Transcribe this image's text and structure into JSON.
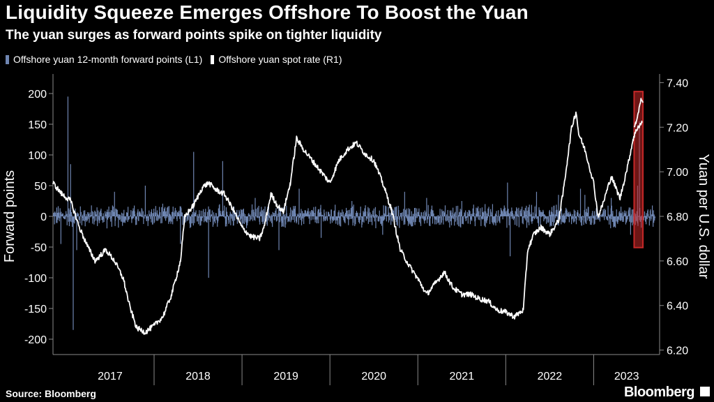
{
  "title": "Liquidity Squeeze Emerges Offshore To Boost the Yuan",
  "subtitle": "The yuan surges as forward points spike on tighter liquidity",
  "source": "Source: Bloomberg",
  "brand": "Bloomberg",
  "colors": {
    "background": "#000000",
    "forward_points": "#6f86b2",
    "spot_rate": "#ffffff",
    "highlight": "#c62828",
    "axis": "#8a8a8a"
  },
  "chart_data": {
    "type": "line",
    "title": "Liquidity Squeeze Emerges Offshore To Boost the Yuan",
    "subtitle": "The yuan surges as forward points spike on tighter liquidity",
    "xlabel": "",
    "ylabel_left": "Forward points",
    "ylabel_right": "Yuan per U.S. dollar",
    "x_range": [
      2016.85,
      2023.75
    ],
    "x_categories": [
      "2017",
      "2018",
      "2019",
      "2020",
      "2021",
      "2022",
      "2023"
    ],
    "y_left": {
      "range": [
        -225,
        225
      ],
      "ticks": [
        200,
        150,
        100,
        50,
        0,
        -50,
        -100,
        -150,
        -200
      ],
      "tick_labels": [
        "200",
        "150",
        "100",
        "50",
        "0",
        "-50",
        "-100",
        "-150",
        "-200"
      ]
    },
    "y_right": {
      "range": [
        6.18,
        7.42
      ],
      "ticks": [
        7.4,
        7.2,
        7.0,
        6.8,
        6.6,
        6.4,
        6.2
      ],
      "tick_labels": [
        "7.40",
        "7.20",
        "7.00",
        "6.80",
        "6.60",
        "6.40",
        "6.20"
      ]
    },
    "highlight": {
      "x_start": 2023.46,
      "x_end": 2023.56,
      "y_low": 6.66,
      "y_high": 7.36
    },
    "series": [
      {
        "name": "Offshore yuan 12-month forward points (L1)",
        "axis": "left",
        "style": "bars",
        "base_noise": 18,
        "x": [
          2016.94,
          2017.02,
          2017.05,
          2017.08,
          2017.12,
          2017.55,
          2017.9,
          2018.3,
          2018.45,
          2018.62,
          2018.78,
          2019.15,
          2019.42,
          2019.65,
          2019.9,
          2020.25,
          2020.6,
          2020.85,
          2021.1,
          2021.5,
          2021.85,
          2022.02,
          2022.05,
          2022.35,
          2022.6,
          2022.85,
          2022.9,
          2023.2,
          2023.42,
          2023.5,
          2023.52
        ],
        "values": [
          -45,
          195,
          85,
          -185,
          -55,
          40,
          50,
          -45,
          105,
          -100,
          90,
          30,
          -55,
          45,
          -35,
          25,
          -30,
          40,
          30,
          25,
          20,
          55,
          -65,
          40,
          35,
          45,
          35,
          30,
          -30,
          50,
          155
        ]
      },
      {
        "name": "Offshore yuan spot rate (R1)",
        "axis": "right",
        "style": "line",
        "noise": 0.012,
        "x": [
          2016.85,
          2016.95,
          2017.05,
          2017.15,
          2017.25,
          2017.33,
          2017.45,
          2017.55,
          2017.65,
          2017.72,
          2017.8,
          2017.9,
          2018.0,
          2018.1,
          2018.2,
          2018.3,
          2018.35,
          2018.45,
          2018.55,
          2018.62,
          2018.7,
          2018.8,
          2018.9,
          2019.0,
          2019.1,
          2019.2,
          2019.25,
          2019.33,
          2019.4,
          2019.47,
          2019.55,
          2019.62,
          2019.7,
          2019.8,
          2019.9,
          2020.0,
          2020.1,
          2020.2,
          2020.3,
          2020.4,
          2020.5,
          2020.6,
          2020.7,
          2020.8,
          2020.9,
          2021.0,
          2021.1,
          2021.2,
          2021.3,
          2021.4,
          2021.5,
          2021.6,
          2021.7,
          2021.8,
          2021.9,
          2022.0,
          2022.1,
          2022.2,
          2022.25,
          2022.32,
          2022.4,
          2022.5,
          2022.6,
          2022.65,
          2022.7,
          2022.75,
          2022.8,
          2022.83,
          2022.9,
          2023.0,
          2023.05,
          2023.1,
          2023.2,
          2023.3,
          2023.4,
          2023.45,
          2023.5,
          2023.55
        ],
        "values": [
          6.95,
          6.9,
          6.87,
          6.75,
          6.66,
          6.6,
          6.65,
          6.6,
          6.52,
          6.4,
          6.3,
          6.28,
          6.31,
          6.35,
          6.45,
          6.6,
          6.8,
          6.85,
          6.93,
          6.95,
          6.92,
          6.9,
          6.83,
          6.75,
          6.71,
          6.7,
          6.75,
          6.9,
          6.85,
          6.82,
          6.95,
          7.15,
          7.1,
          7.05,
          7.0,
          6.95,
          7.05,
          7.1,
          7.13,
          7.08,
          7.05,
          6.95,
          6.83,
          6.65,
          6.58,
          6.52,
          6.45,
          6.5,
          6.55,
          6.48,
          6.45,
          6.45,
          6.43,
          6.42,
          6.38,
          6.37,
          6.35,
          6.38,
          6.65,
          6.72,
          6.75,
          6.72,
          6.78,
          6.9,
          7.05,
          7.2,
          7.27,
          7.17,
          7.1,
          6.95,
          6.8,
          6.85,
          6.98,
          6.88,
          7.05,
          7.15,
          7.2,
          7.22
        ]
      },
      {
        "name": "Offshore yuan spot rate (highlighted)",
        "axis": "right",
        "style": "line",
        "noise": 0.006,
        "x": [
          2023.46,
          2023.48,
          2023.5,
          2023.52,
          2023.54,
          2023.56
        ],
        "values": [
          7.2,
          7.22,
          7.25,
          7.29,
          7.33,
          7.31
        ]
      }
    ]
  }
}
